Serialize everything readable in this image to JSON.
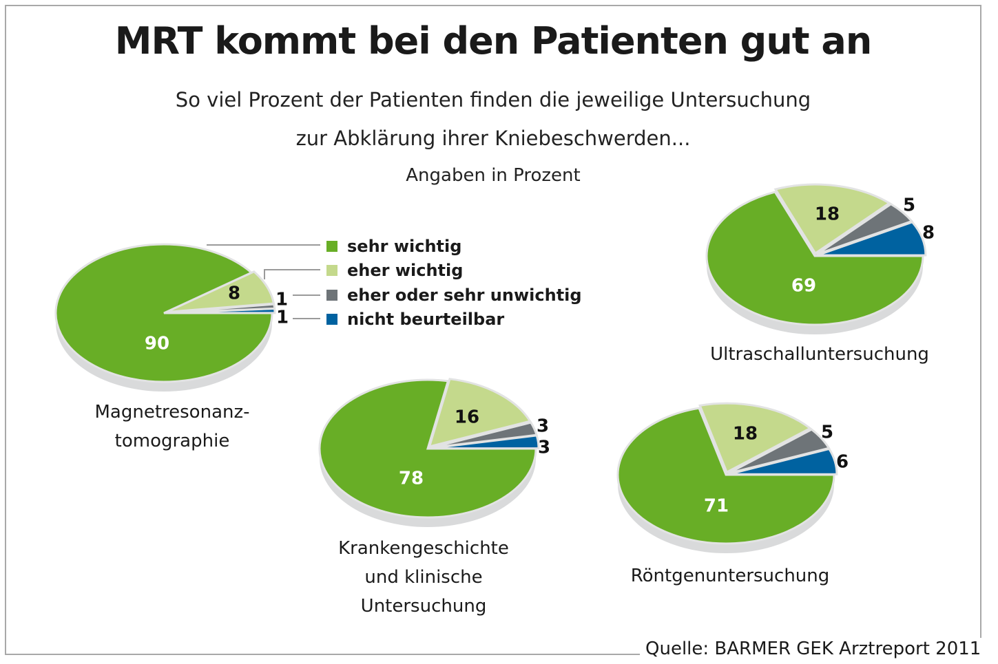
{
  "title": "MRT kommt bei den Patienten gut an",
  "subtitle_line1": "So viel Prozent der Patienten finden die jeweilige Untersuchung",
  "subtitle_line2": "zur Abklärung ihrer Kniebeschwerden...",
  "units_note": "Angaben in Prozent",
  "source": "Quelle: BARMER GEK Arztreport 2011",
  "colors": {
    "sehr_wichtig": "#68ae26",
    "eher_wichtig": "#c4d98c",
    "unwichtig": "#6e7478",
    "nicht_beurteilbar": "#0062a0",
    "shadow": "#d9dadb",
    "leader": "#9a9a9a"
  },
  "legend": [
    {
      "label": "sehr wichtig",
      "color": "#68ae26"
    },
    {
      "label": "eher wichtig",
      "color": "#c4d98c"
    },
    {
      "label": "eher oder sehr unwichtig",
      "color": "#6e7478"
    },
    {
      "label": "nicht beurteilbar",
      "color": "#0062a0"
    }
  ],
  "captions": {
    "mrt": [
      "Magnetresonanz-",
      "tomographie"
    ],
    "ultraschall": [
      "Ultraschalluntersuchung"
    ],
    "kranken": [
      "Krankengeschichte",
      "und klinische",
      "Untersuchung"
    ],
    "roentgen": [
      "Röntgenuntersuchung"
    ]
  },
  "chart_data": [
    {
      "type": "pie",
      "title": "Magnetresonanztomographie",
      "categories": [
        "sehr wichtig",
        "eher wichtig",
        "eher oder sehr unwichtig",
        "nicht beurteilbar"
      ],
      "values": [
        90,
        8,
        1,
        1
      ],
      "labels": [
        "90",
        "8",
        "1",
        "1"
      ]
    },
    {
      "type": "pie",
      "title": "Ultraschalluntersuchung",
      "categories": [
        "sehr wichtig",
        "eher wichtig",
        "eher oder sehr unwichtig",
        "nicht beurteilbar"
      ],
      "values": [
        69,
        18,
        5,
        8
      ],
      "labels": [
        "69",
        "18",
        "5",
        "8"
      ]
    },
    {
      "type": "pie",
      "title": "Krankengeschichte und klinische Untersuchung",
      "categories": [
        "sehr wichtig",
        "eher wichtig",
        "eher oder sehr unwichtig",
        "nicht beurteilbar"
      ],
      "values": [
        78,
        16,
        3,
        3
      ],
      "labels": [
        "78",
        "16",
        "3",
        "3"
      ]
    },
    {
      "type": "pie",
      "title": "Röntgenuntersuchung",
      "categories": [
        "sehr wichtig",
        "eher wichtig",
        "eher oder sehr unwichtig",
        "nicht beurteilbar"
      ],
      "values": [
        71,
        18,
        5,
        6
      ],
      "labels": [
        "71",
        "18",
        "5",
        "6"
      ]
    }
  ]
}
